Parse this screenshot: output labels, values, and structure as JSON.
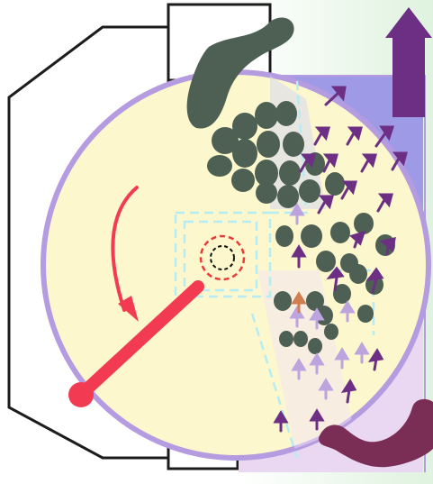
{
  "diagram": {
    "kind": "mixer-cross-section",
    "rotation_direction": "counterclockwise",
    "colors": {
      "background_green_start": "#dff2df",
      "background_green_end": "#ffffff",
      "outer_housing_stroke": "#1c1c1c",
      "drum_fill": "#fcf7cc",
      "drum_rim": "#b59be0",
      "blue_zone": "#9f9ae6",
      "pink_zone": "#ead7f2",
      "particle_grey": "#4d6053",
      "airflow_arrow": "#6d2f83",
      "airflow_arrow_light": "#bda4df",
      "accent_arrow_orange": "#d07d4f",
      "dashed_lines": "#b6ecf4",
      "rotor_red": "#f23b52",
      "red_ring": "#ea3a3a",
      "inner_ring_black": "#111111",
      "gray_box": "#cdcfcf"
    },
    "icons": [
      "rotation-arrow-icon",
      "outflow-arrow-icon",
      "inflow-hook-arrow-icon"
    ]
  }
}
